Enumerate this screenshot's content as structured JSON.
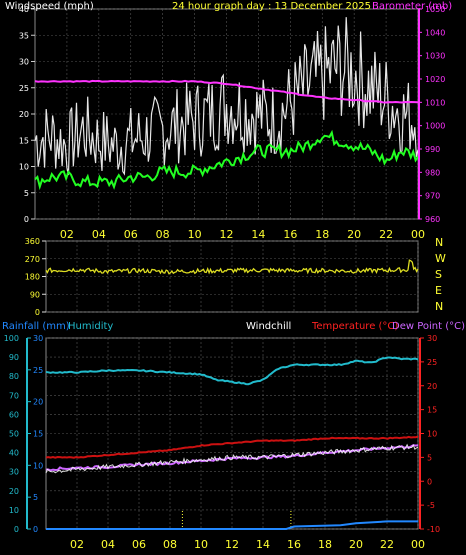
{
  "chart_data": [
    {
      "type": "line",
      "title": "24 hour graph day : 13 December 2025",
      "ylabel_left": "Windspeed (mph)",
      "ylabel_right": "Barometer (mb)",
      "x_ticks": [
        "02",
        "04",
        "06",
        "08",
        "10",
        "12",
        "14",
        "16",
        "18",
        "20",
        "22",
        "00"
      ],
      "ylim_left": [
        0,
        40
      ],
      "y_ticks_left": [
        0,
        5,
        10,
        15,
        20,
        25,
        30,
        35,
        40
      ],
      "ylim_right": [
        960,
        1050
      ],
      "y_ticks_right": [
        960,
        970,
        980,
        990,
        1000,
        1010,
        1020,
        1030,
        1040,
        1050
      ],
      "series": [
        {
          "name": "Windspeed (mph)",
          "color": "#ffffff",
          "x": [
            0,
            1,
            2,
            3,
            4,
            5,
            6,
            7,
            8,
            9,
            10,
            11,
            12,
            13,
            14,
            15,
            16,
            17,
            18,
            19,
            20,
            21,
            22,
            23,
            24
          ],
          "values": [
            15,
            16,
            14,
            17,
            15,
            14,
            15,
            16,
            17,
            18,
            19,
            20,
            22,
            21,
            20,
            19,
            22,
            25,
            27,
            29,
            28,
            25,
            23,
            20,
            19
          ]
        },
        {
          "name": "Wind gust",
          "color": "#22ff22",
          "x": [
            0,
            1,
            2,
            3,
            4,
            5,
            6,
            7,
            8,
            9,
            10,
            11,
            12,
            13,
            14,
            15,
            16,
            17,
            18,
            19,
            20,
            21,
            22,
            23,
            24
          ],
          "values": [
            7,
            8,
            8,
            7,
            7,
            7,
            8,
            8,
            9,
            9,
            9,
            10,
            11,
            12,
            13,
            13,
            13,
            14,
            16,
            15,
            14,
            13,
            11,
            13,
            12
          ]
        },
        {
          "name": "Barometer (mb)",
          "color": "#ff33ff",
          "x": [
            0,
            2,
            4,
            6,
            8,
            10,
            12,
            14,
            16,
            18,
            20,
            22,
            24
          ],
          "values": [
            1019,
            1019,
            1019,
            1019,
            1019,
            1019,
            1018,
            1016,
            1014,
            1012,
            1011,
            1010,
            1010
          ]
        }
      ]
    },
    {
      "type": "line",
      "ylim": [
        0,
        360
      ],
      "y_ticks": [
        0,
        90,
        180,
        270,
        360
      ],
      "direction_labels": [
        "N",
        "W",
        "S",
        "E",
        "N"
      ],
      "series": [
        {
          "name": "Wind direction",
          "color": "#dddd22",
          "x": [
            0,
            2,
            4,
            6,
            8,
            10,
            12,
            14,
            16,
            18,
            20,
            22,
            24
          ],
          "values": [
            210,
            215,
            205,
            210,
            205,
            208,
            210,
            212,
            210,
            210,
            208,
            212,
            215
          ]
        }
      ]
    },
    {
      "type": "line",
      "xlabel": "",
      "x_ticks": [
        "02",
        "04",
        "06",
        "08",
        "10",
        "12",
        "14",
        "16",
        "18",
        "20",
        "22",
        "00"
      ],
      "legend": {
        "rain": "Rainfall (mm)",
        "humidity": "Humidity",
        "windchill": "Windchill",
        "temperature": "Temperature (°C)",
        "dewpoint": "Dew Point (°C)"
      },
      "ylim_left": [
        0,
        100
      ],
      "y_ticks_left": [
        0,
        10,
        20,
        30,
        40,
        50,
        60,
        70,
        80,
        90,
        100
      ],
      "ylim_rain": [
        0,
        30
      ],
      "y_ticks_rain": [
        0,
        5,
        10,
        15,
        20,
        25,
        30
      ],
      "ylim_right": [
        -10,
        30
      ],
      "y_ticks_right": [
        -10,
        -5,
        0,
        5,
        10,
        15,
        20,
        25,
        30
      ],
      "series": [
        {
          "name": "Humidity",
          "color": "#22bbcc",
          "x": [
            0,
            2,
            4,
            6,
            8,
            10,
            11,
            12,
            13,
            14,
            15,
            16,
            17,
            18,
            19,
            20,
            21,
            22,
            23,
            24
          ],
          "values": [
            82,
            82,
            83,
            83,
            82,
            81,
            78,
            77,
            76,
            78,
            84,
            86,
            86,
            86,
            86,
            88,
            87,
            90,
            89,
            89
          ]
        },
        {
          "name": "Temperature (°C)",
          "color": "#cc1111",
          "x": [
            0,
            2,
            4,
            6,
            8,
            10,
            12,
            14,
            16,
            18,
            20,
            22,
            24
          ],
          "values": [
            5,
            5,
            5.5,
            6,
            6.5,
            7.5,
            8,
            8.5,
            8.5,
            9,
            9,
            9,
            9.3
          ]
        },
        {
          "name": "Dew Point (°C)",
          "color": "#cc66ff",
          "x": [
            0,
            2,
            4,
            6,
            8,
            10,
            12,
            14,
            16,
            18,
            20,
            22,
            24
          ],
          "values": [
            2.5,
            2.8,
            3,
            3.5,
            3.8,
            4.3,
            4.8,
            5,
            5.3,
            6,
            6.5,
            7,
            7.4
          ]
        },
        {
          "name": "Windchill",
          "color": "#ffffff",
          "x": [
            0,
            2,
            4,
            6,
            8,
            10,
            12,
            14,
            16,
            18,
            20,
            22,
            24
          ],
          "values": [
            2,
            2.5,
            3,
            3.5,
            4,
            4.5,
            5,
            5,
            5.5,
            6,
            6.5,
            7,
            7.2
          ]
        },
        {
          "name": "Rainfall (mm)",
          "color": "#2288ff",
          "x": [
            0,
            15.5,
            16,
            19,
            20,
            22,
            24
          ],
          "values": [
            0,
            0,
            0.4,
            0.6,
            0.9,
            1.2,
            1.2
          ]
        }
      ],
      "markers": [
        8.8,
        15.8
      ]
    }
  ]
}
